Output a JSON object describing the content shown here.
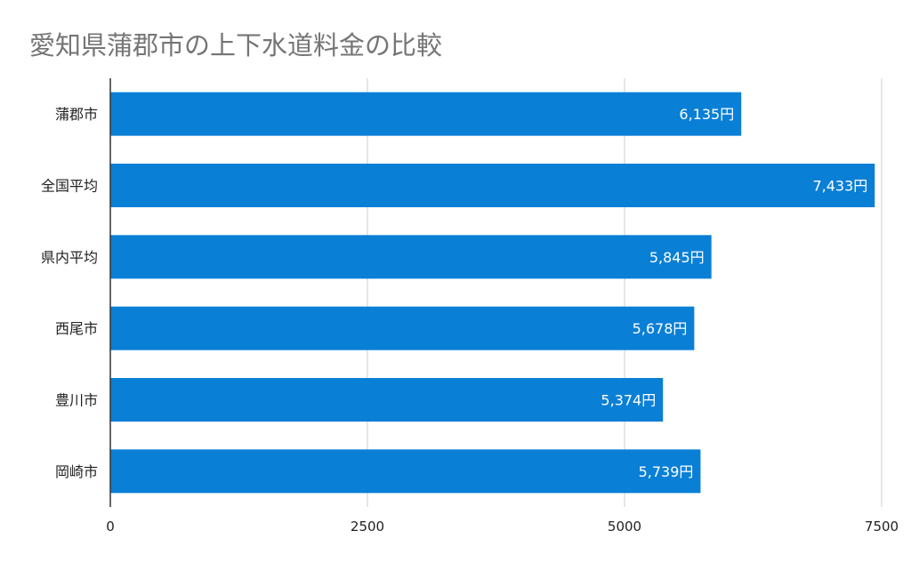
{
  "chart_data": {
    "type": "bar",
    "orientation": "horizontal",
    "title": "愛知県蒲郡市の上下水道料金の比較",
    "categories": [
      "蒲郡市",
      "全国平均",
      "県内平均",
      "西尾市",
      "豊川市",
      "岡崎市"
    ],
    "values": [
      6135,
      7433,
      5845,
      5678,
      5374,
      5739
    ],
    "data_labels": [
      "6,135円",
      "7,433円",
      "5,845円",
      "5,678円",
      "5,374円",
      "5,739円"
    ],
    "xlim": [
      0,
      7500
    ],
    "x_ticks": [
      "0",
      "2500",
      "5000",
      "7500"
    ],
    "x_tick_values": [
      0,
      2500,
      5000,
      7500
    ],
    "xlabel": "",
    "ylabel": "",
    "grid": true,
    "bar_color": "#0a7fd6",
    "label_color": "#ffffff"
  }
}
